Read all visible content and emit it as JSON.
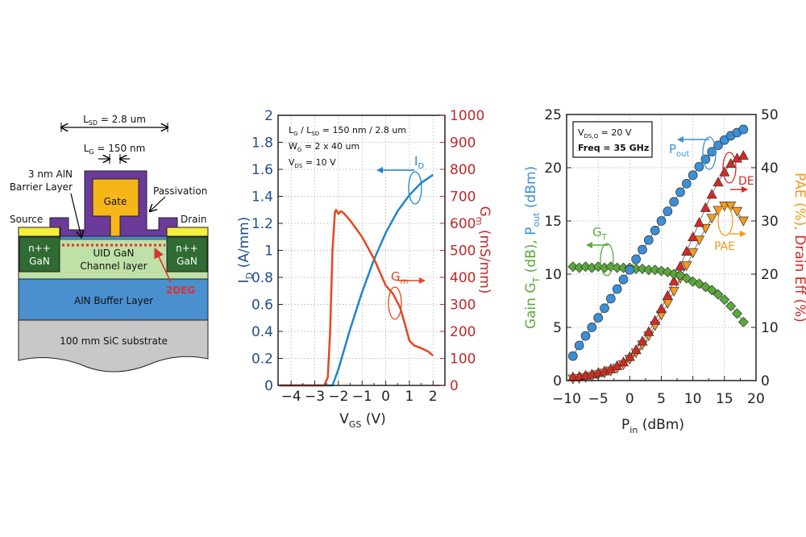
{
  "diagram": {
    "lsd_label": "L",
    "lsd_sub": "SD",
    "lsd_value": " = 2.8 um",
    "lg_label": "L",
    "lg_sub": "G",
    "lg_value": " = 150 nm",
    "barrier_line1": "3 nm AlN",
    "barrier_line2": "Barrier Layer",
    "passivation": "Passivation",
    "gate": "Gate",
    "source": "Source",
    "drain": "Drain",
    "npp_line1": "n++",
    "npp_line2": "GaN",
    "channel_line1": "UID GaN",
    "channel_line2": "Channel layer",
    "twodeg": "2DEG",
    "buffer": "AlN Buffer Layer",
    "substrate": "100 mm SiC substrate",
    "colors": {
      "passivation": "#6b3a9a",
      "gate": "#f6b519",
      "contact": "#f3ef3c",
      "npp": "#2f6b32",
      "channel": "#bfe0a6",
      "buffer": "#4a8fce",
      "substrate": "#c8c8c8",
      "twodeg": "#e03030"
    }
  },
  "chart_data": [
    {
      "type": "line",
      "title": "",
      "xlabel": "V",
      "xlabel_sub": "GS",
      "xlabel_unit": " (V)",
      "ylabel": "I",
      "ylabel_sub": "D",
      "ylabel_unit": " (A/mm)",
      "y2label": "G",
      "y2label_sub": "m",
      "y2label_unit": " (mS/mm)",
      "xlim": [
        -4.55,
        2.5
      ],
      "ylim": [
        0,
        2
      ],
      "y2lim": [
        0,
        1000
      ],
      "xticks": [
        -4,
        -3,
        -2,
        -1,
        0,
        1,
        2
      ],
      "yticks": [
        0,
        0.2,
        0.4,
        0.6,
        0.8,
        1,
        1.2,
        1.4,
        1.6,
        1.8,
        2
      ],
      "y2ticks": [
        0,
        100,
        200,
        300,
        400,
        500,
        600,
        700,
        800,
        900,
        1000
      ],
      "grid": true,
      "annotations": [
        {
          "main": "L",
          "sub": "G",
          "rest": " / L",
          "sub2": "SD",
          "rest2": " = 150 nm / 2.8 um"
        },
        {
          "main": "W",
          "sub": "G",
          "rest": " = 2 x 40 um"
        },
        {
          "main": "V",
          "sub": "DS",
          "rest": " = 10 V"
        }
      ],
      "series": [
        {
          "name": "I_D",
          "label": "I",
          "label_sub": "D",
          "axis": "left",
          "color": "#1f86c8",
          "x": [
            -4.5,
            -2.25,
            -2.0,
            -1.5,
            -1.0,
            -0.5,
            0,
            0.5,
            1.0,
            1.5,
            2.0
          ],
          "y": [
            0,
            0,
            0.12,
            0.42,
            0.69,
            0.93,
            1.13,
            1.29,
            1.41,
            1.5,
            1.56
          ]
        },
        {
          "name": "G_m",
          "label": "G",
          "label_sub": "m",
          "axis": "right",
          "color": "#e8451e",
          "x": [
            -4.5,
            -2.6,
            -2.45,
            -2.35,
            -2.25,
            -2.15,
            -2.1,
            -2.0,
            -1.9,
            -1.8,
            -1.5,
            -1.0,
            -0.5,
            0,
            0.3,
            0.6,
            0.8,
            1.0,
            1.2,
            1.5,
            1.8,
            2.0
          ],
          "y": [
            0,
            0,
            30,
            200,
            500,
            640,
            650,
            635,
            645,
            640,
            610,
            550,
            470,
            370,
            340,
            290,
            230,
            165,
            148,
            138,
            125,
            110
          ]
        }
      ]
    },
    {
      "type": "scatter",
      "title": "",
      "xlabel": "P",
      "xlabel_sub": "in",
      "xlabel_unit": " (dBm)",
      "ylabel_parts": [
        "Gain G",
        "T",
        " (dB), ",
        "P",
        "out",
        " (dBm)"
      ],
      "y2label_parts": [
        "PAE (%), ",
        "Drain Eff (%)"
      ],
      "xlim": [
        -10,
        20
      ],
      "ylim": [
        0,
        25
      ],
      "y2lim": [
        0,
        50
      ],
      "xticks": [
        -10,
        -5,
        0,
        5,
        10,
        15,
        20
      ],
      "yticks": [
        0,
        5,
        10,
        15,
        20,
        25
      ],
      "y2ticks": [
        0,
        10,
        20,
        30,
        40,
        50
      ],
      "grid": true,
      "legend_box": [
        {
          "main": "V",
          "sub": "DS,Q",
          "rest": " = 20 V"
        },
        {
          "main": "Freq = 35 GHz"
        }
      ],
      "x": [
        -9,
        -8,
        -7,
        -6,
        -5,
        -4,
        -3,
        -2,
        -1,
        0,
        1,
        2,
        3,
        4,
        5,
        6,
        7,
        8,
        9,
        10,
        11,
        12,
        13,
        14,
        15,
        16,
        17,
        18
      ],
      "series": [
        {
          "name": "P_out",
          "label": "P",
          "label_sub": "out",
          "axis": "left",
          "marker": "circle",
          "color": "#3a8fd6",
          "y": [
            2.3,
            3.3,
            4.2,
            5.0,
            5.9,
            6.8,
            7.7,
            8.6,
            9.5,
            10.4,
            11.4,
            12.3,
            13.2,
            14.1,
            15.0,
            15.9,
            16.8,
            17.7,
            18.5,
            19.3,
            20.1,
            20.8,
            21.5,
            22.1,
            22.6,
            23.0,
            23.3,
            23.6
          ]
        },
        {
          "name": "G_T",
          "label": "G",
          "label_sub": "T",
          "axis": "left",
          "marker": "diamond",
          "color": "#5aa83a",
          "y": [
            10.7,
            10.6,
            10.7,
            10.6,
            10.7,
            10.6,
            10.7,
            10.6,
            10.6,
            10.6,
            10.5,
            10.5,
            10.4,
            10.4,
            10.3,
            10.2,
            10.0,
            9.9,
            9.6,
            9.3,
            9.1,
            8.8,
            8.5,
            8.1,
            7.6,
            7.0,
            6.3,
            5.5
          ]
        },
        {
          "name": "DE",
          "label": "DE",
          "axis": "right",
          "marker": "triangle-up",
          "color": "#d42a25",
          "y": [
            0.7,
            0.8,
            1.0,
            1.2,
            1.5,
            1.8,
            2.2,
            2.8,
            3.5,
            4.5,
            5.8,
            7.4,
            9.2,
            11.3,
            13.5,
            16.0,
            18.7,
            21.5,
            24.3,
            27.0,
            29.7,
            32.5,
            35.0,
            37.3,
            39.2,
            40.8,
            41.8,
            42.3
          ]
        },
        {
          "name": "PAE",
          "label": "PAE",
          "axis": "right",
          "marker": "triangle-down",
          "color": "#f39a1e",
          "y": [
            0.3,
            0.4,
            0.6,
            0.8,
            1.1,
            1.4,
            1.8,
            2.3,
            3.0,
            4.0,
            5.2,
            6.7,
            8.4,
            10.3,
            12.3,
            14.5,
            16.8,
            19.2,
            21.6,
            24.0,
            26.4,
            28.6,
            30.5,
            32.0,
            32.8,
            32.8,
            31.8,
            30.0
          ]
        }
      ]
    }
  ]
}
